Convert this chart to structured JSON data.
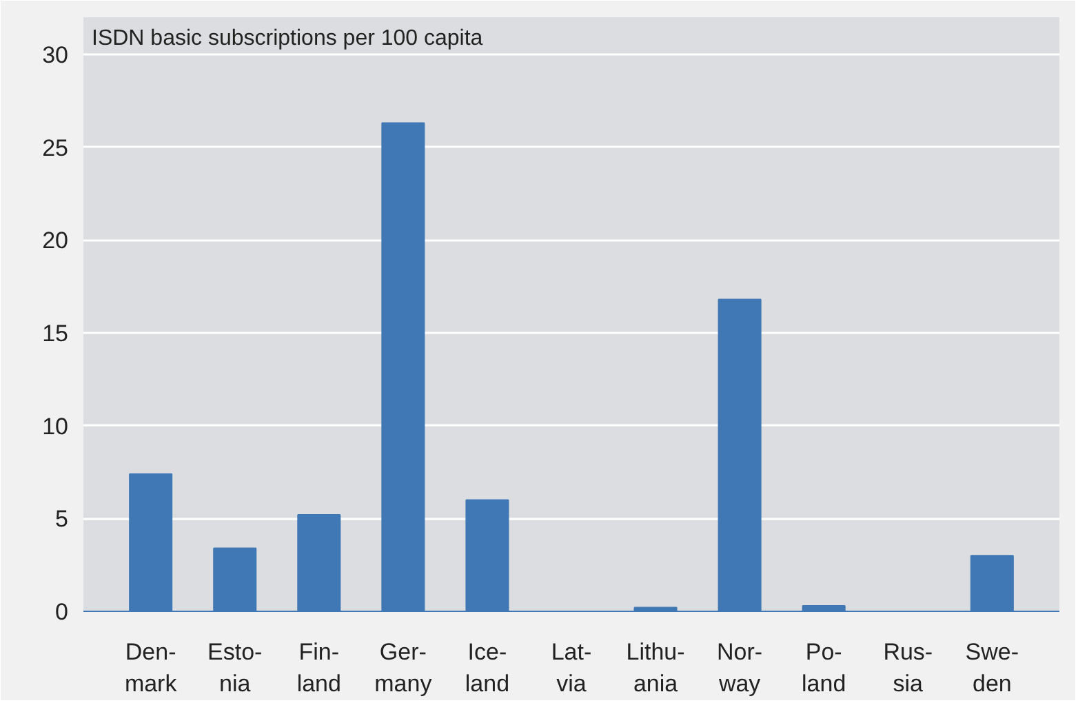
{
  "chart_data": {
    "type": "bar",
    "title": "ISDN basic subscriptions per 100 capita",
    "categories": [
      "Den-\nmark",
      "Esto-\nnia",
      "Fin-\nland",
      "Ger-\nmany",
      "Ice-\nland",
      "Lat-\nvia",
      "Lithu-\nania",
      "Nor-\nway",
      "Po-\nland",
      "Rus-\nsia",
      "Swe-\nden"
    ],
    "values": [
      7.4,
      3.4,
      5.2,
      26.3,
      6.0,
      0,
      0.2,
      16.8,
      0.3,
      0,
      3.0
    ],
    "color": "#3f78b4",
    "ylim": [
      0,
      32
    ],
    "yticks": [
      0,
      5,
      10,
      15,
      20,
      25,
      30
    ],
    "grid": "y"
  }
}
